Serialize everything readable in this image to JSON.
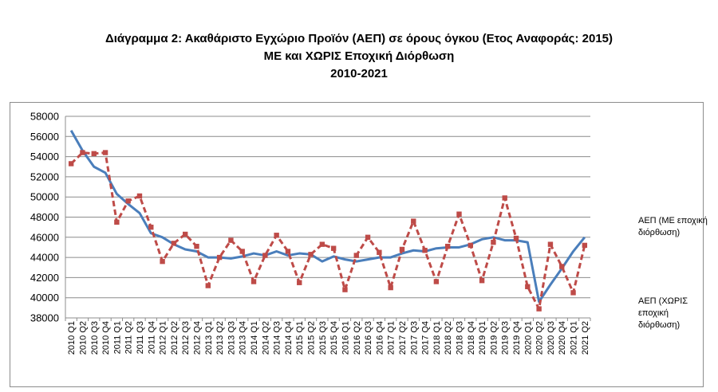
{
  "title": {
    "line1": "Διάγραμμα 2: Ακαθάριστο Εγχώριο Προϊόν (ΑΕΠ) σε όρους όγκου (Ετος Αναφοράς: 2015)",
    "line2": "ΜΕ και ΧΩΡΙΣ Εποχική Διόρθωση",
    "line3": "2010-2021"
  },
  "chart_data": {
    "type": "line",
    "title": "Διάγραμμα 2: Ακαθάριστο Εγχώριο Προϊόν (ΑΕΠ) σε όρους όγκου (Ετος Αναφοράς: 2015) ΜΕ και ΧΩΡΙΣ Εποχική Διόρθωση 2010-2021",
    "xlabel": "",
    "ylabel": "",
    "ylim": [
      38000,
      58000
    ],
    "yticks": [
      38000,
      40000,
      42000,
      44000,
      46000,
      48000,
      50000,
      52000,
      54000,
      56000,
      58000
    ],
    "grid": true,
    "legend_position": "right",
    "categories": [
      "2010 Q1",
      "2010 Q2",
      "2010 Q3",
      "2010 Q4",
      "2011 Q1",
      "2011 Q2",
      "2011 Q3",
      "2011 Q4",
      "2012 Q1",
      "2012 Q2",
      "2012 Q3",
      "2012 Q4",
      "2013 Q1",
      "2013 Q2",
      "2013 Q3",
      "2013 Q4",
      "2014 Q1",
      "2014 Q2",
      "2014 Q3",
      "2014 Q4",
      "2015 Q1",
      "2015 Q2",
      "2015 Q3",
      "2015 Q4",
      "2016 Q1",
      "2016 Q2",
      "2016 Q3",
      "2016 Q4",
      "2017 Q1",
      "2017 Q2",
      "2017 Q3",
      "2017 Q4",
      "2018 Q1",
      "2018 Q2",
      "2018 Q3",
      "2018 Q4",
      "2019 Q1",
      "2019 Q2",
      "2019 Q3",
      "2019 Q4",
      "2020 Q1",
      "2020 Q2",
      "2020 Q3",
      "2020 Q4",
      "2021 Q1",
      "2021 Q2"
    ],
    "series": [
      {
        "name": "ΑΕΠ (ΜΕ εποχική διόρθωση)",
        "color": "#4a7ebb",
        "style": "solid",
        "values": [
          56600,
          54600,
          53000,
          52400,
          50300,
          49300,
          48400,
          46400,
          46000,
          45300,
          44800,
          44600,
          44000,
          44000,
          43900,
          44100,
          44400,
          44200,
          44600,
          44200,
          44400,
          44300,
          43600,
          44100,
          43800,
          43600,
          43800,
          44000,
          44000,
          44400,
          44700,
          44600,
          44900,
          45000,
          45000,
          45300,
          45800,
          46000,
          45700,
          45700,
          45500,
          39600,
          41300,
          42900,
          44600,
          46000
        ]
      },
      {
        "name": "ΑΕΠ (ΧΩΡΙΣ εποχική διόρθωση)",
        "color": "#be4b48",
        "style": "dashed",
        "values": [
          53300,
          54400,
          54300,
          54400,
          47500,
          49600,
          50100,
          47000,
          43600,
          45400,
          46300,
          45100,
          41200,
          44000,
          45700,
          44600,
          41600,
          44200,
          46200,
          44600,
          41500,
          44300,
          45300,
          44900,
          40800,
          44200,
          46000,
          44500,
          41000,
          44800,
          47600,
          44700,
          41600,
          45100,
          48300,
          45200,
          41700,
          45500,
          49900,
          45900,
          41100,
          38900,
          45300,
          43100,
          40500,
          45200
        ]
      }
    ]
  },
  "legend": {
    "series1_label": "ΑΕΠ (ΜΕ εποχική διόρθωση)",
    "series2_label": "ΑΕΠ (ΧΩΡΙΣ εποχική διόρθωση)"
  },
  "colors": {
    "series1": "#4a7ebb",
    "series2": "#be4b48",
    "grid": "#8c8c8c",
    "frame": "#8c8c8c"
  }
}
